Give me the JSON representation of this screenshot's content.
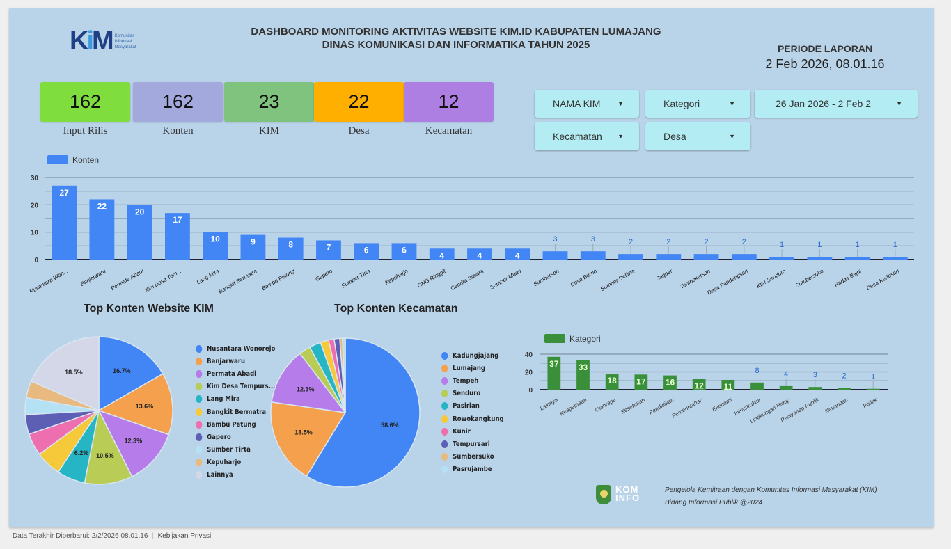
{
  "header": {
    "logo_text": "KiM",
    "logo_sub": "Komunitas Informasi Masyarakat",
    "title_line1": "DASHBOARD MONITORING AKTIVITAS WEBSITE KIM.ID KABUPATEN LUMAJANG",
    "title_line2": "DINAS KOMUNIKASI DAN INFORMATIKA TAHUN 2025",
    "periode_label": "PERIODE LAPORAN",
    "periode_value": "2 Feb 2026, 08.01.16"
  },
  "kpis": [
    {
      "value": "162",
      "label": "Input Rilis",
      "color": "#7fdd3e"
    },
    {
      "value": "162",
      "label": "Konten",
      "color": "#a3a9dd"
    },
    {
      "value": "23",
      "label": "KIM",
      "color": "#7fc37f"
    },
    {
      "value": "22",
      "label": "Desa",
      "color": "#ffaf00"
    },
    {
      "value": "12",
      "label": "Kecamatan",
      "color": "#ad7fe3"
    }
  ],
  "filters": {
    "nama_kim": "NAMA KIM",
    "kategori": "Kategori",
    "date_range": "26 Jan 2026 - 2 Feb 2",
    "kecamatan": "Kecamatan",
    "desa": "Desa"
  },
  "chart_data": [
    {
      "type": "bar",
      "legend": "Konten",
      "color": "#4285f4",
      "ylim": [
        0,
        30
      ],
      "yticks": [
        0,
        10,
        20,
        30
      ],
      "grid": true,
      "legend_position": "top-left",
      "categories": [
        "Nusantara Won...",
        "Banjarwaru",
        "Permata Abadi",
        "Kim Desa Tem...",
        "Lang Mira",
        "Bangkit Bermatra",
        "Bambu Petung",
        "Gapero",
        "Sumber Tirta",
        "Kepuharjo",
        "GNG Ringgit",
        "Candra Biwara",
        "Sumber Mudu",
        "Sumbersari",
        "Desa Burno",
        "Sumber Delima",
        "Jaguar",
        "Tempokersan",
        "Desa Pandangsari",
        "KIM Senduro",
        "Sumbersuko",
        "Padas Bajul",
        "Desa Kerlosari"
      ],
      "values": [
        27,
        22,
        20,
        17,
        10,
        9,
        8,
        7,
        6,
        6,
        4,
        4,
        4,
        3,
        3,
        2,
        2,
        2,
        2,
        1,
        1,
        1,
        1
      ]
    },
    {
      "type": "pie",
      "title": "Top Konten Website KIM",
      "labels": [
        "Nusantara Wonorejo",
        "Banjarwaru",
        "Permata Abadi",
        "Kim Desa Tempurs...",
        "Lang Mira",
        "Bangkit Bermatra",
        "Bambu Petung",
        "Gapero",
        "Sumber Tirta",
        "Kepuharjo",
        "Lainnya"
      ],
      "values": [
        16.7,
        13.6,
        12.3,
        10.5,
        6.2,
        5.6,
        4.9,
        4.3,
        3.7,
        3.7,
        18.5
      ],
      "shown_labels": [
        "16.7%",
        "13.6%",
        "12.3%",
        "10.5%",
        "6.2%",
        "",
        "",
        "",
        "",
        "",
        "18.5%"
      ],
      "colors": [
        "#4285f4",
        "#f5a04c",
        "#b57cea",
        "#b8cc56",
        "#26b5c4",
        "#f6c93a",
        "#ee6fb0",
        "#5d5fb5",
        "#b5e1f5",
        "#e8ba80",
        "#d3d7e8"
      ]
    },
    {
      "type": "pie",
      "title": "Top Konten Kecamatan",
      "labels": [
        "Kadungjajang",
        "Lumajang",
        "Tempeh",
        "Senduro",
        "Pasirian",
        "Rowokangkung",
        "Kunir",
        "Tempursari",
        "Sumbersuko",
        "Pasrujambe"
      ],
      "values": [
        58.6,
        18.5,
        12.3,
        2.5,
        2.5,
        1.8,
        1.2,
        1.2,
        0.6,
        0.6
      ],
      "shown_labels": [
        "58.6%",
        "18.5%",
        "12.3%",
        "",
        "",
        "",
        "",
        "",
        "",
        ""
      ],
      "colors": [
        "#4285f4",
        "#f5a04c",
        "#b57cea",
        "#b8cc56",
        "#26b5c4",
        "#f6c93a",
        "#ee6fb0",
        "#5d5fb5",
        "#e8ba80",
        "#b5e1f5"
      ]
    },
    {
      "type": "bar",
      "legend": "Kategori",
      "color": "#3a8f3a",
      "ylim": [
        0,
        40
      ],
      "yticks": [
        0,
        20,
        40
      ],
      "grid": true,
      "legend_position": "top-left",
      "categories": [
        "Lainnya",
        "Keagamaan",
        "Olahraga",
        "Kesehatan",
        "Pendidikan",
        "Pemerintahan",
        "Ekonomi",
        "Infrastruktur",
        "Lingkungan Hidup",
        "Pelayanan Publik",
        "Keuangan",
        "Politik"
      ],
      "values": [
        37,
        33,
        18,
        17,
        16,
        12,
        11,
        8,
        4,
        3,
        2,
        1
      ]
    }
  ],
  "footer": {
    "line1": "Pengelola Kemitraan dengan Komunitas Informasi Masyarakat (KIM)",
    "line2": "Bidang Informasi Publik @2024",
    "kominfo_logo": "KOM INFO",
    "updated": "Data Terakhir Diperbarui: 2/2/2026 08.01.16",
    "separator": "|",
    "privacy": "Kebijakan Privasi"
  }
}
